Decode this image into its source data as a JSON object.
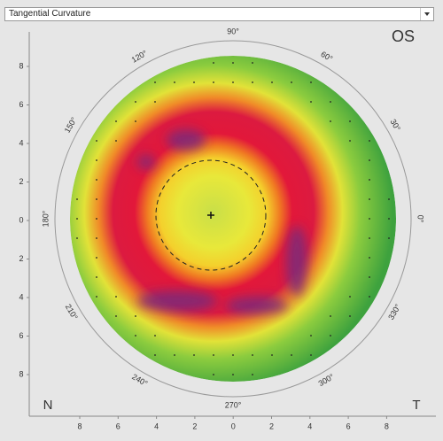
{
  "header": {
    "dropdown": "Tangential Curvature"
  },
  "eye_label": "OS",
  "nasal_label": "N",
  "temporal_label": "T",
  "angle_labels": [
    "0°",
    "30°",
    "60°",
    "90°",
    "120°",
    "150°",
    "180°",
    "210°",
    "240°",
    "270°",
    "300°",
    "330°"
  ],
  "left_axis": [
    8,
    6,
    4,
    2,
    0,
    2,
    4,
    6,
    8
  ],
  "bottom_axis": [
    8,
    6,
    4,
    2,
    0,
    2,
    4,
    6,
    8
  ]
}
